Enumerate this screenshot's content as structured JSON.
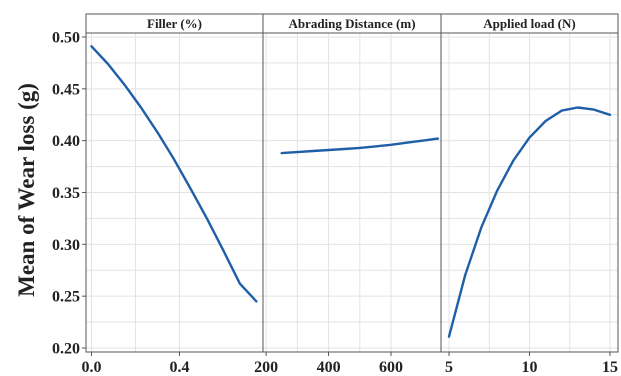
{
  "chart_data": {
    "type": "line",
    "ylabel": "Mean of Wear loss (g)",
    "ylim": [
      0.2,
      0.5
    ],
    "yticks": [
      0.2,
      0.25,
      0.3,
      0.35,
      0.4,
      0.45,
      0.5
    ],
    "ytick_labels": [
      "0.20",
      "0.25",
      "0.30",
      "0.35",
      "0.40",
      "0.45",
      "0.50"
    ],
    "grid": true,
    "line_color": "#1f5fa8",
    "panels": [
      {
        "title": "Filler (%)",
        "xlim": [
          -0.025,
          0.78
        ],
        "xticks": [
          0.0,
          0.4
        ],
        "xtick_labels": [
          "0.0",
          "0.4"
        ],
        "x": [
          0.0,
          0.075,
          0.15,
          0.225,
          0.3,
          0.375,
          0.45,
          0.525,
          0.6,
          0.675,
          0.75
        ],
        "y": [
          0.491,
          0.474,
          0.454,
          0.432,
          0.408,
          0.382,
          0.354,
          0.325,
          0.294,
          0.262,
          0.245
        ]
      },
      {
        "title": "Abrading Distance (m)",
        "xlim": [
          190,
          760
        ],
        "xticks": [
          200,
          400,
          600
        ],
        "xtick_labels": [
          "200",
          "400",
          "600"
        ],
        "x": [
          250,
          300,
          350,
          400,
          450,
          500,
          550,
          600,
          650,
          700,
          750
        ],
        "y": [
          0.388,
          0.389,
          0.39,
          0.391,
          0.392,
          0.393,
          0.3945,
          0.396,
          0.398,
          0.4,
          0.402
        ]
      },
      {
        "title": "Applied load (N)",
        "xlim": [
          4.5,
          15.5
        ],
        "xticks": [
          5,
          10,
          15
        ],
        "xtick_labels": [
          "5",
          "10",
          "15"
        ],
        "x": [
          5,
          6,
          7,
          8,
          9,
          10,
          11,
          12,
          13,
          14,
          15
        ],
        "y": [
          0.211,
          0.27,
          0.316,
          0.352,
          0.381,
          0.403,
          0.419,
          0.429,
          0.432,
          0.43,
          0.425
        ]
      }
    ]
  }
}
